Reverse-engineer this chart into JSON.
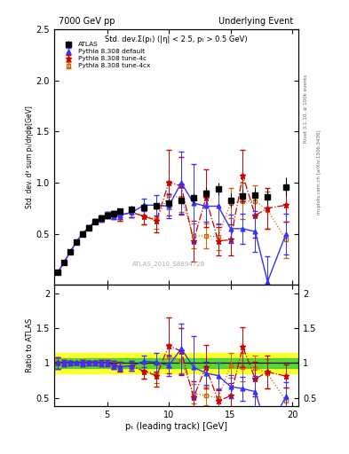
{
  "title_left": "7000 GeV pp",
  "title_right": "Underlying Event",
  "plot_title": "Std. dev.Σ(pₜ) (|η| < 2.5, pₜ > 0.5 GeV)",
  "ylabel_main": "Std. dev. d² sum pₜ/dηdφ[GeV]",
  "ylabel_ratio": "Ratio to ATLAS",
  "xlabel": "pₜ (leading track) [GeV]",
  "right_label_top": "Rivet 3.1.10, ≥ 100k events",
  "right_label_bot": "mcplots.cern.ch [arXiv:1306.3436]",
  "watermark": "ATLAS_2010_S8894728",
  "atlas_x": [
    1.0,
    1.5,
    2.0,
    2.5,
    3.0,
    3.5,
    4.0,
    4.5,
    5.0,
    5.5,
    6.0,
    7.0,
    8.0,
    9.0,
    10.0,
    11.0,
    12.0,
    13.0,
    14.0,
    15.0,
    16.0,
    17.0,
    18.0,
    19.5
  ],
  "atlas_y": [
    0.12,
    0.22,
    0.32,
    0.42,
    0.5,
    0.56,
    0.62,
    0.65,
    0.68,
    0.7,
    0.72,
    0.74,
    0.76,
    0.77,
    0.8,
    0.83,
    0.85,
    0.9,
    0.94,
    0.83,
    0.87,
    0.88,
    0.86,
    0.96
  ],
  "atlas_yerr": [
    0.01,
    0.01,
    0.01,
    0.01,
    0.01,
    0.01,
    0.01,
    0.02,
    0.02,
    0.02,
    0.02,
    0.03,
    0.03,
    0.03,
    0.04,
    0.04,
    0.05,
    0.06,
    0.06,
    0.07,
    0.07,
    0.07,
    0.08,
    0.09
  ],
  "blue_x": [
    1.0,
    1.5,
    2.0,
    2.5,
    3.0,
    3.5,
    4.0,
    4.5,
    5.0,
    5.5,
    6.0,
    7.0,
    8.0,
    9.0,
    10.0,
    11.0,
    12.0,
    13.0,
    14.0,
    15.0,
    16.0,
    17.0,
    18.0,
    19.5
  ],
  "blue_y": [
    0.12,
    0.22,
    0.32,
    0.42,
    0.5,
    0.56,
    0.62,
    0.65,
    0.68,
    0.68,
    0.68,
    0.71,
    0.78,
    0.78,
    0.77,
    1.0,
    0.8,
    0.77,
    0.77,
    0.55,
    0.55,
    0.52,
    0.03,
    0.5
  ],
  "blue_yerr": [
    0.01,
    0.01,
    0.01,
    0.01,
    0.02,
    0.02,
    0.02,
    0.03,
    0.03,
    0.04,
    0.04,
    0.05,
    0.06,
    0.1,
    0.12,
    0.3,
    0.38,
    0.15,
    0.18,
    0.14,
    0.15,
    0.2,
    0.25,
    0.2
  ],
  "red_x": [
    1.0,
    1.5,
    2.0,
    2.5,
    3.0,
    3.5,
    4.0,
    4.5,
    5.0,
    5.5,
    6.0,
    7.0,
    8.0,
    9.0,
    10.0,
    11.0,
    12.0,
    13.0,
    14.0,
    15.0,
    16.0,
    17.0,
    18.0,
    19.5
  ],
  "red_y": [
    0.12,
    0.22,
    0.32,
    0.42,
    0.5,
    0.56,
    0.62,
    0.65,
    0.68,
    0.68,
    0.68,
    0.71,
    0.67,
    0.63,
    1.0,
    0.97,
    0.43,
    0.85,
    0.43,
    0.44,
    1.07,
    0.68,
    0.75,
    0.78
  ],
  "red_yerr": [
    0.01,
    0.01,
    0.01,
    0.01,
    0.02,
    0.02,
    0.02,
    0.03,
    0.03,
    0.04,
    0.05,
    0.05,
    0.08,
    0.12,
    0.32,
    0.28,
    0.2,
    0.28,
    0.14,
    0.15,
    0.25,
    0.22,
    0.2,
    0.16
  ],
  "orange_x": [
    1.0,
    1.5,
    2.0,
    2.5,
    3.0,
    3.5,
    4.0,
    4.5,
    5.0,
    5.5,
    6.0,
    7.0,
    8.0,
    9.0,
    10.0,
    11.0,
    12.0,
    13.0,
    14.0,
    15.0,
    16.0,
    17.0,
    18.0,
    19.5
  ],
  "orange_y": [
    0.12,
    0.22,
    0.32,
    0.42,
    0.5,
    0.56,
    0.62,
    0.65,
    0.68,
    0.68,
    0.68,
    0.71,
    0.67,
    0.65,
    0.88,
    0.85,
    0.48,
    0.48,
    0.47,
    0.8,
    0.82,
    0.82,
    0.73,
    0.44
  ],
  "orange_yerr": [
    0.01,
    0.01,
    0.01,
    0.01,
    0.02,
    0.02,
    0.02,
    0.03,
    0.03,
    0.04,
    0.05,
    0.05,
    0.08,
    0.1,
    0.14,
    0.14,
    0.12,
    0.12,
    0.13,
    0.15,
    0.18,
    0.15,
    0.18,
    0.18
  ],
  "ylim_main": [
    0,
    2.5
  ],
  "ylim_ratio": [
    0.38,
    2.12
  ],
  "xlim": [
    0.7,
    20.5
  ],
  "xticks": [
    5,
    10,
    15,
    20
  ],
  "yticks_main": [
    0.5,
    1.0,
    1.5,
    2.0,
    2.5
  ],
  "yticks_ratio": [
    0.5,
    1.0,
    1.5,
    2.0
  ],
  "band_yellow_low": 0.85,
  "band_yellow_high": 1.15,
  "band_green_low": 0.93,
  "band_green_high": 1.07,
  "blue_color": "#3333ff",
  "red_color": "#cc0000",
  "orange_color": "#cc6600",
  "atlas_color": "#000000"
}
